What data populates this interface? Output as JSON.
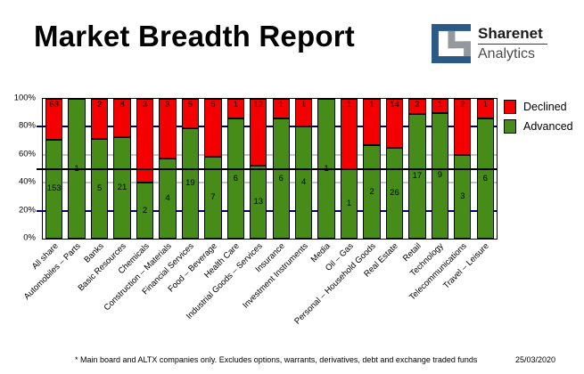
{
  "header": {
    "title": "Market Breadth Report",
    "logo": {
      "line1": "Sharenet",
      "line2": "Analytics"
    }
  },
  "chart_data": {
    "type": "bar",
    "stacked": true,
    "percent_stacked": true,
    "title": "Market Breadth Report",
    "categories": [
      "All share",
      "Automobiles – Parts",
      "Banks",
      "Basic Resources",
      "Chemicals",
      "Construction – Materials",
      "Financial Services",
      "Food – Beverage",
      "Health Care",
      "Industrial Goods – Services",
      "Insurance",
      "Investment Instruments",
      "Media",
      "Oil – Gas",
      "Personal – Household Goods",
      "Real Estate",
      "Retail",
      "Technology",
      "Telecommunications",
      "Travel – Leisure"
    ],
    "series": [
      {
        "name": "Declined",
        "color": "#f40000",
        "values": [
          63,
          0,
          2,
          8,
          3,
          3,
          5,
          5,
          1,
          12,
          1,
          1,
          0,
          1,
          1,
          14,
          2,
          1,
          2,
          1
        ]
      },
      {
        "name": "Advanced",
        "color": "#478c19",
        "values": [
          153,
          1,
          5,
          21,
          2,
          4,
          19,
          7,
          6,
          13,
          6,
          4,
          1,
          1,
          2,
          26,
          17,
          9,
          3,
          6
        ]
      }
    ],
    "ylim": [
      0,
      100
    ],
    "ytick_labels": [
      "100%",
      "80%",
      "60%",
      "40%",
      "20%",
      "0%"
    ],
    "gridlines": {
      "navy": [
        20,
        80
      ],
      "silver": [
        40,
        60
      ],
      "black_mid": 50
    },
    "legend_position": "top-right",
    "grid_colors": {
      "navy": "#000080",
      "silver": "#c4c4c4",
      "mid": "#000000"
    }
  },
  "legend": {
    "items": [
      {
        "label": "Declined",
        "color": "#f40000"
      },
      {
        "label": "Advanced",
        "color": "#478c19"
      }
    ]
  },
  "footer": {
    "note": "* Main board and ALTX companies only. Excludes options, warrants, derivatives, debt and exchange traded funds",
    "date": "25/03/2020"
  }
}
